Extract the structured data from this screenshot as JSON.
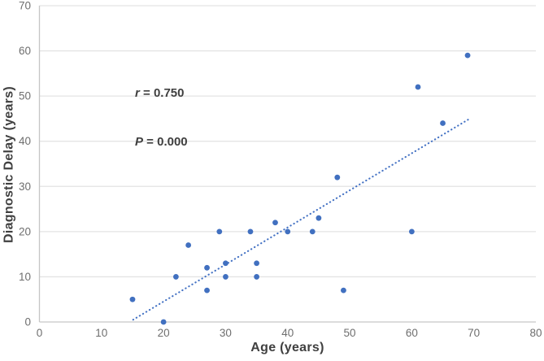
{
  "chart_data": {
    "type": "scatter",
    "title": "",
    "xlabel": "Age (years)",
    "ylabel": "Diagnostic Delay (years)",
    "xlim": [
      0,
      80
    ],
    "ylim": [
      0,
      70
    ],
    "xticks": [
      0,
      10,
      20,
      30,
      40,
      50,
      60,
      70,
      80
    ],
    "yticks": [
      0,
      10,
      20,
      30,
      40,
      50,
      60,
      70
    ],
    "grid": "horizontal-only",
    "legend": "none",
    "points": [
      [
        15,
        5
      ],
      [
        20,
        0
      ],
      [
        22,
        10
      ],
      [
        24,
        17
      ],
      [
        27,
        7
      ],
      [
        27,
        12
      ],
      [
        29,
        20
      ],
      [
        30,
        10
      ],
      [
        30,
        13
      ],
      [
        34,
        20
      ],
      [
        35,
        10
      ],
      [
        35,
        13
      ],
      [
        38,
        22
      ],
      [
        40,
        20
      ],
      [
        44,
        20
      ],
      [
        45,
        23
      ],
      [
        48,
        32
      ],
      [
        49,
        7
      ],
      [
        60,
        20
      ],
      [
        61,
        52
      ],
      [
        65,
        44
      ],
      [
        69,
        59
      ]
    ],
    "trendline": {
      "style": "dotted",
      "x1": 15.1,
      "y1": 0.5,
      "x2": 69.1,
      "y2": 44.8
    },
    "annotation": {
      "r_label": "r",
      "r_value": " = 0.750",
      "p_label": "P",
      "p_value": " = 0.000"
    },
    "colors": {
      "point": "#4170C0",
      "trendline": "#4472C4",
      "gridline": "#E3E3E3",
      "axis_line": "#C6C6C6",
      "tick_label": "#6E6E6E",
      "axis_title": "#404040",
      "annotation_text": "#3F3F3F",
      "background": "#FFFFFF"
    }
  }
}
